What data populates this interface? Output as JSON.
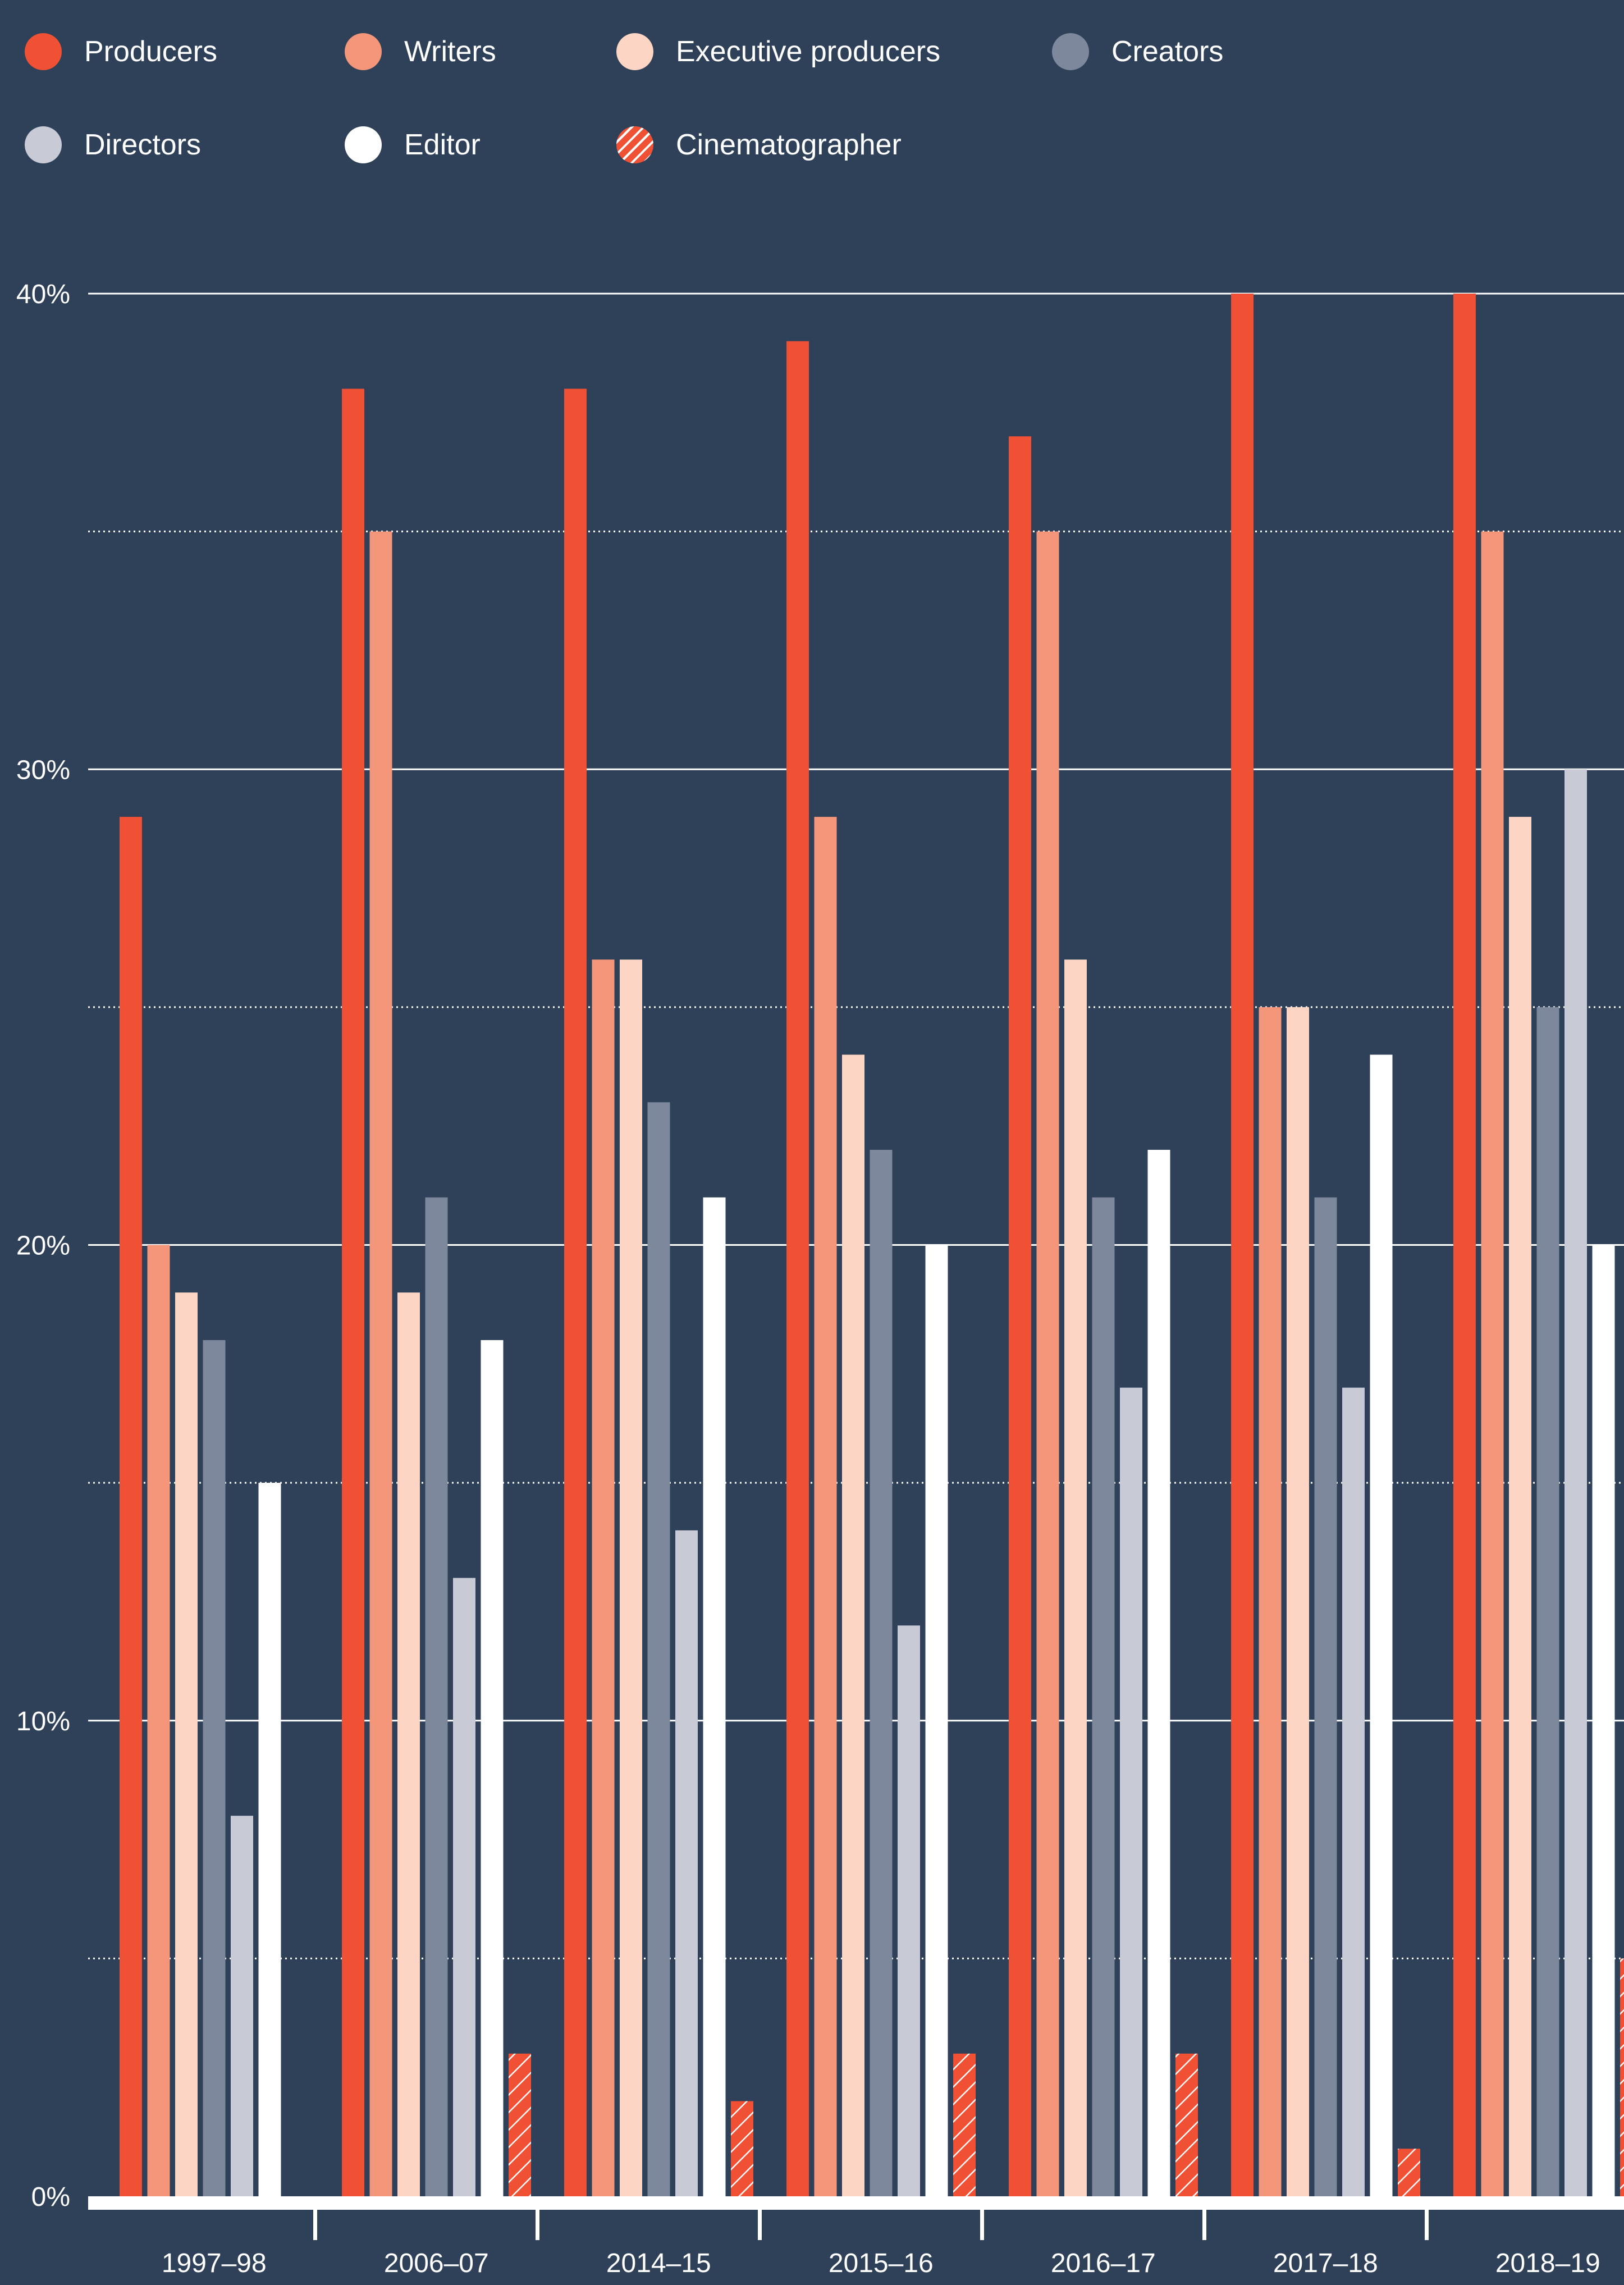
{
  "chart_data": {
    "type": "bar",
    "categories": [
      "1997–98",
      "2006–07",
      "2014–15",
      "2015–16",
      "2016–17",
      "2017–18",
      "2018–19"
    ],
    "series": [
      {
        "name": "Producers",
        "color": "#f05033",
        "pattern": "solid",
        "values": [
          29,
          38,
          38,
          39,
          37,
          40,
          40
        ]
      },
      {
        "name": "Writers",
        "color": "#f4967a",
        "pattern": "solid",
        "values": [
          20,
          35,
          26,
          29,
          35,
          25,
          35
        ]
      },
      {
        "name": "Executive producers",
        "color": "#fdd5c4",
        "pattern": "solid",
        "values": [
          19,
          19,
          26,
          24,
          26,
          25,
          29
        ]
      },
      {
        "name": "Creators",
        "color": "#7d889c",
        "pattern": "solid",
        "values": [
          18,
          21,
          23,
          22,
          21,
          21,
          25
        ]
      },
      {
        "name": "Directors",
        "color": "#c8cbd6",
        "pattern": "solid",
        "values": [
          8,
          13,
          14,
          12,
          17,
          17,
          30
        ]
      },
      {
        "name": "Editor",
        "color": "#ffffff",
        "pattern": "solid",
        "values": [
          15,
          18,
          21,
          20,
          22,
          24,
          20
        ]
      },
      {
        "name": "Cinematographer",
        "color": "#f05033",
        "pattern": "hatched",
        "values": [
          null,
          3,
          2,
          3,
          3,
          1,
          5
        ]
      }
    ],
    "y_ticks": [
      {
        "value": 0,
        "label": "0%"
      },
      {
        "value": 10,
        "label": "10%"
      },
      {
        "value": 20,
        "label": "20%"
      },
      {
        "value": 30,
        "label": "30%"
      },
      {
        "value": 40,
        "label": "40%"
      }
    ],
    "ylim": [
      0,
      40
    ],
    "minor_gridlines": [
      5,
      15,
      25,
      35
    ],
    "grid": true,
    "legend_position": "top",
    "title": "",
    "xlabel": "",
    "ylabel": ""
  },
  "colors": {
    "background": "#2f4159",
    "gridline": "#ffffff",
    "axis": "#ffffff",
    "text": "#ffffff"
  }
}
